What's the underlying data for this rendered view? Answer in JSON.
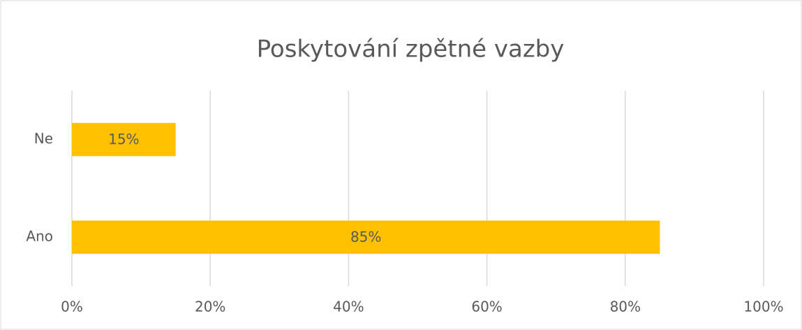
{
  "chart_data": {
    "type": "barh",
    "title": "Poskytování zpětné vazby",
    "categories": [
      "Ne",
      "Ano"
    ],
    "values": [
      15,
      85
    ],
    "value_labels": [
      "15%",
      "85%"
    ],
    "color": "#ffc000",
    "xlim": [
      0,
      100
    ],
    "xticks": [
      {
        "value": 0,
        "label": "0%"
      },
      {
        "value": 20,
        "label": "20%"
      },
      {
        "value": 40,
        "label": "40%"
      },
      {
        "value": 60,
        "label": "60%"
      },
      {
        "value": 80,
        "label": "80%"
      },
      {
        "value": 100,
        "label": "100%"
      }
    ],
    "grid": true
  }
}
